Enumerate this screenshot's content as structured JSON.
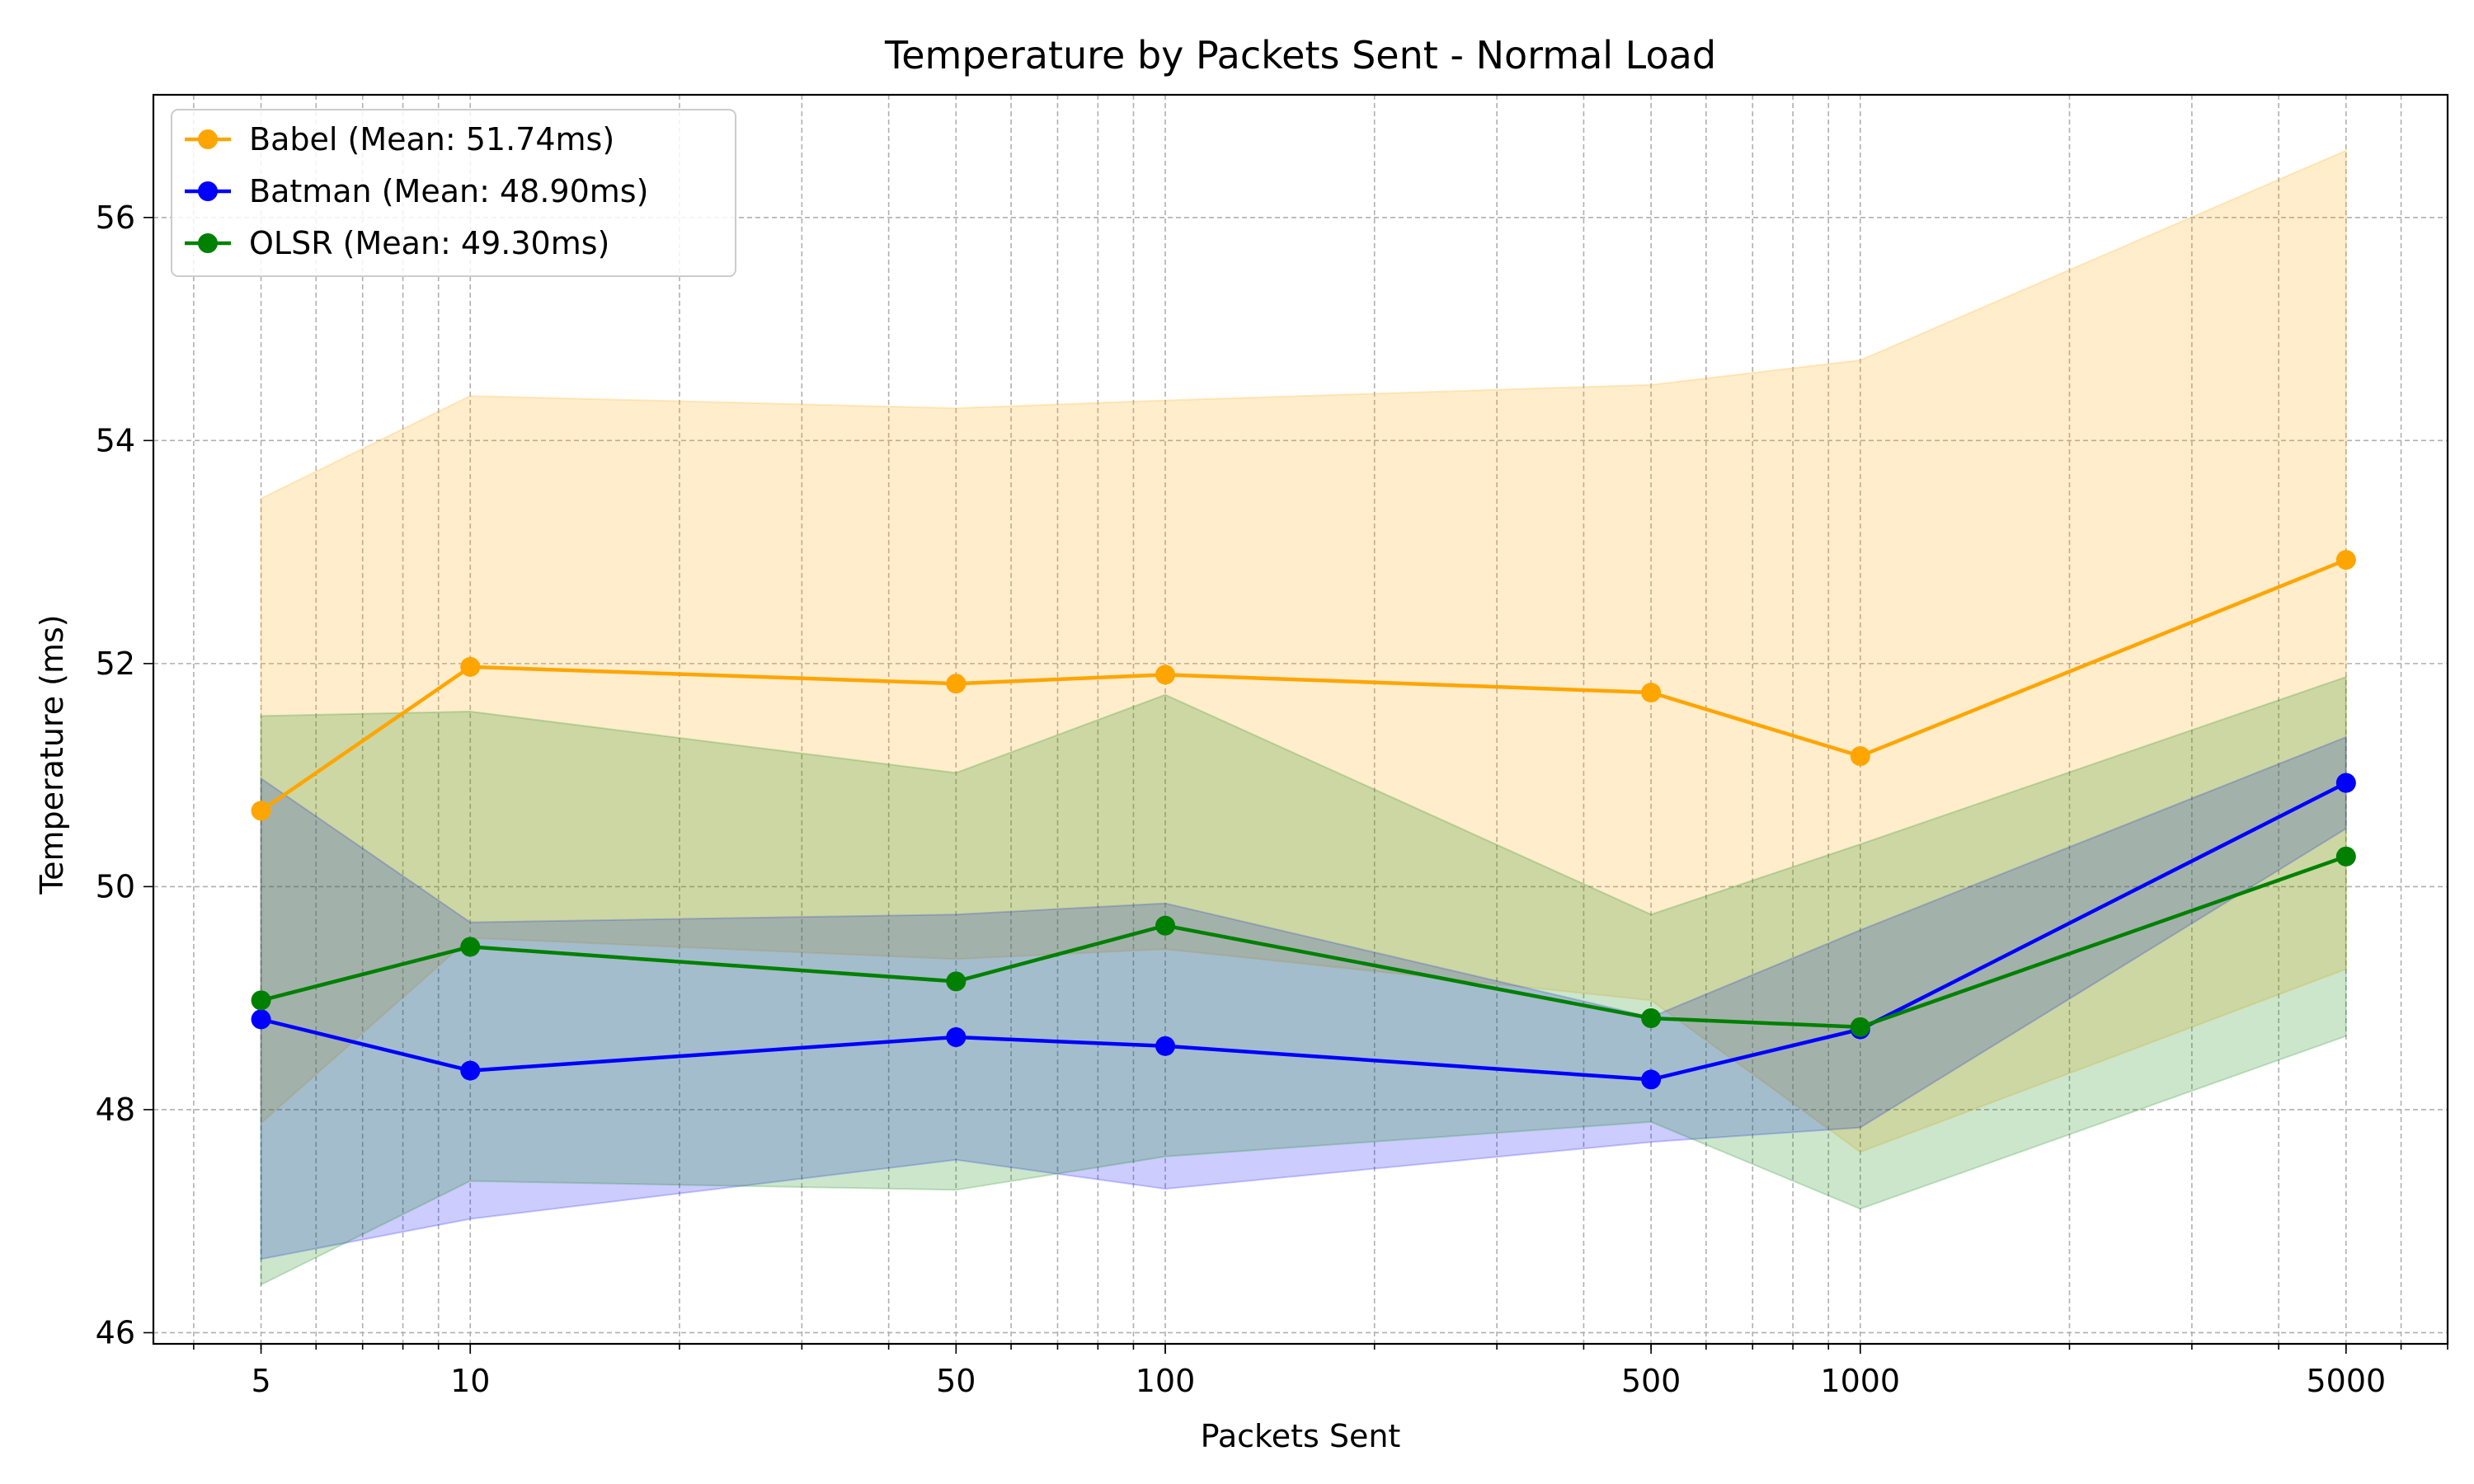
{
  "chart_data": {
    "type": "line",
    "title": "Temperature by Packets Sent - Normal Load",
    "xlabel": "Packets Sent",
    "ylabel": "Temperature (ms)",
    "x_scale": "log",
    "x": [
      5,
      10,
      50,
      100,
      500,
      1000,
      5000
    ],
    "x_tick_labels": [
      "5",
      "10",
      "50",
      "100",
      "500",
      "1000",
      "5000"
    ],
    "xlim": [
      3.5,
      7000
    ],
    "ylim": [
      45.9,
      57.1
    ],
    "y_ticks": [
      46,
      48,
      50,
      52,
      54,
      56
    ],
    "y_tick_labels": [
      "46",
      "48",
      "50",
      "52",
      "54",
      "56"
    ],
    "grid": true,
    "legend_position": "top-left",
    "series": [
      {
        "name": "Babel (Mean: 51.74ms)",
        "color": "#ffa500",
        "values": [
          50.68,
          51.97,
          51.82,
          51.9,
          51.74,
          51.17,
          52.93
        ],
        "band_upper": [
          53.48,
          54.4,
          54.29,
          54.36,
          54.5,
          54.72,
          56.6
        ],
        "band_lower": [
          47.88,
          49.54,
          49.35,
          49.44,
          48.98,
          47.62,
          49.26
        ]
      },
      {
        "name": "Batman (Mean: 48.90ms)",
        "color": "#0000ff",
        "values": [
          48.81,
          48.35,
          48.65,
          48.57,
          48.27,
          48.72,
          50.93
        ],
        "band_upper": [
          50.97,
          49.68,
          49.75,
          49.85,
          48.83,
          49.61,
          51.34
        ],
        "band_lower": [
          46.66,
          47.02,
          47.55,
          47.29,
          47.71,
          47.84,
          50.52
        ]
      },
      {
        "name": "OLSR (Mean: 49.30ms)",
        "color": "#008000",
        "values": [
          48.98,
          49.46,
          49.15,
          49.65,
          48.82,
          48.74,
          50.27
        ],
        "band_upper": [
          51.53,
          51.57,
          51.02,
          51.72,
          49.75,
          50.38,
          51.88
        ],
        "band_lower": [
          46.43,
          47.36,
          47.28,
          47.58,
          47.89,
          47.11,
          48.66
        ]
      }
    ]
  }
}
